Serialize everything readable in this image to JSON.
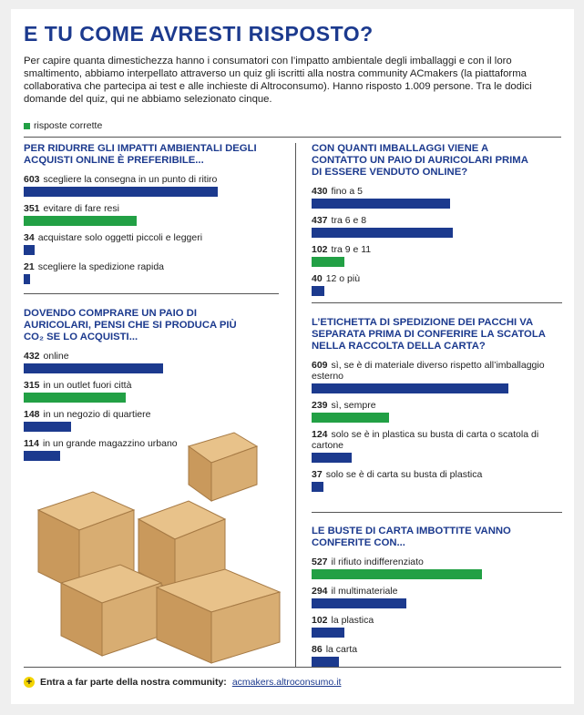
{
  "title": "E TU COME AVRESTI RISPOSTO?",
  "intro": "Per capire quanta dimestichezza hanno i consumatori con l’impatto ambientale degli imballaggi e con il loro smaltimento, abbiamo interpellato attraverso un quiz gli iscritti alla nostra community ACmakers (la piattaforma collaborativa che partecipa ai test e alle inchieste di Altroconsumo). Hanno risposto 1.009 persone. Tra le dodici domande del quiz, qui ne abbiamo selezionato cinque.",
  "legend": {
    "label": "risposte corrette",
    "color": "#22a045"
  },
  "footer": {
    "text": "Entra a far parte della nostra community:",
    "link": "acmakers.altroconsumo.it"
  },
  "chart_data": [
    {
      "type": "bar",
      "title": "PER RIDURRE GLI IMPATTI AMBIENTALI DEGLI ACQUISTI ONLINE È PREFERIBILE...",
      "categories": [
        "scegliere la consegna in un punto di ritiro",
        "evitare di fare resi",
        "acquistare solo oggetti piccoli e leggeri",
        "scegliere la spedizione rapida"
      ],
      "values": [
        603,
        351,
        34,
        21
      ],
      "colors": [
        "#1c3a8e",
        "#22a045",
        "#1c3a8e",
        "#1c3a8e"
      ]
    },
    {
      "type": "bar",
      "title": "DOVENDO COMPRARE UN PAIO DI AURICOLARI, PENSI CHE SI PRODUCA PIÙ CO₂ SE LO ACQUISTI...",
      "categories": [
        "online",
        "in un outlet fuori città",
        "in un negozio di quartiere",
        "in un grande magazzino urbano"
      ],
      "values": [
        432,
        315,
        148,
        114
      ],
      "colors": [
        "#1c3a8e",
        "#22a045",
        "#1c3a8e",
        "#1c3a8e"
      ]
    },
    {
      "type": "bar",
      "title": "CON QUANTI IMBALLAGGI VIENE A CONTATTO UN PAIO DI AURICOLARI PRIMA DI ESSERE VENDUTO ONLINE?",
      "categories": [
        "fino a 5",
        "tra 6 e 8",
        "tra 9 e 11",
        "12 o più"
      ],
      "values": [
        430,
        437,
        102,
        40
      ],
      "colors": [
        "#1c3a8e",
        "#1c3a8e",
        "#22a045",
        "#1c3a8e"
      ]
    },
    {
      "type": "bar",
      "title": "L’ETICHETTA DI SPEDIZIONE DEI PACCHI VA SEPARATA PRIMA DI CONFERIRE LA SCATOLA NELLA RACCOLTA DELLA CARTA?",
      "categories": [
        "sì, se è di materiale diverso rispetto all’imballaggio esterno",
        "sì, sempre",
        "solo se è in plastica su busta di carta o scatola di cartone",
        "solo se è di carta su busta di plastica"
      ],
      "values": [
        609,
        239,
        124,
        37
      ],
      "colors": [
        "#1c3a8e",
        "#22a045",
        "#1c3a8e",
        "#1c3a8e"
      ]
    },
    {
      "type": "bar",
      "title": "LE BUSTE DI CARTA IMBOTTITE VANNO CONFERITE CON...",
      "categories": [
        "il rifiuto indifferenziato",
        "il multimateriale",
        "la plastica",
        "la carta"
      ],
      "values": [
        527,
        294,
        102,
        86
      ],
      "colors": [
        "#22a045",
        "#1c3a8e",
        "#1c3a8e",
        "#1c3a8e"
      ]
    }
  ]
}
